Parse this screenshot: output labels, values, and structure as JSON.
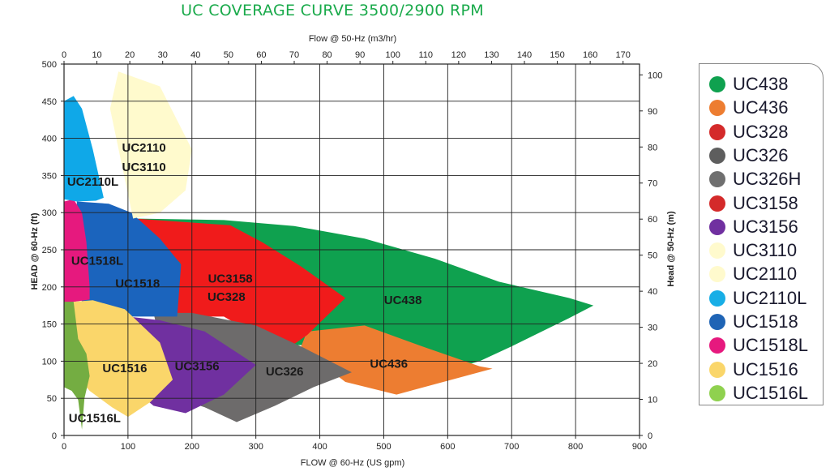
{
  "chart_data": {
    "type": "area",
    "title": "UC COVERAGE CURVE 3500/2900 RPM",
    "xlabel_bottom": "FLOW @ 60-Hz (US gpm)",
    "xlabel_top": "Flow @ 50-Hz (m3/hr)",
    "ylabel_left": "HEAD @ 60-Hz (ft)",
    "ylabel_right": "Head @ 50-Hz (m)",
    "xlim": [
      0,
      900
    ],
    "ylim": [
      0,
      500
    ],
    "xlim_top": [
      0,
      175
    ],
    "ylim_right": [
      0,
      103
    ],
    "x_ticks": [
      "0",
      "100",
      "200",
      "300",
      "400",
      "500",
      "600",
      "700",
      "800",
      "900"
    ],
    "y_ticks": [
      "0",
      "50",
      "100",
      "150",
      "200",
      "250",
      "300",
      "350",
      "400",
      "450",
      "500"
    ],
    "x_top_ticks": [
      "0",
      "10",
      "20",
      "30",
      "40",
      "50",
      "60",
      "70",
      "80",
      "90",
      "100",
      "110",
      "120",
      "130",
      "140",
      "150",
      "160",
      "170"
    ],
    "y_right_ticks": [
      "0",
      "10",
      "20",
      "30",
      "40",
      "50",
      "60",
      "70",
      "80",
      "90",
      "100"
    ],
    "grid": true,
    "legend_position": "right",
    "regions": [
      {
        "name": "UC438",
        "color": "#0fa14f",
        "label": "UC438",
        "points": [
          [
            108,
            292
          ],
          [
            250,
            290
          ],
          [
            360,
            282
          ],
          [
            470,
            265
          ],
          [
            580,
            238
          ],
          [
            680,
            207
          ],
          [
            790,
            185
          ],
          [
            828,
            175
          ],
          [
            790,
            158
          ],
          [
            700,
            120
          ],
          [
            650,
            100
          ],
          [
            600,
            88
          ],
          [
            500,
            92
          ],
          [
            470,
            100
          ],
          [
            440,
            120
          ],
          [
            350,
            122
          ],
          [
            270,
            150
          ],
          [
            170,
            210
          ],
          [
            140,
            260
          ]
        ]
      },
      {
        "name": "UC436",
        "color": "#ed7d31",
        "label": "UC436",
        "points": [
          [
            380,
            140
          ],
          [
            470,
            148
          ],
          [
            560,
            120
          ],
          [
            650,
            93
          ],
          [
            670,
            90
          ],
          [
            520,
            55
          ],
          [
            440,
            72
          ],
          [
            370,
            118
          ]
        ]
      },
      {
        "name": "UC3158",
        "color": "#f01b1b",
        "label": "UC3158\nUC328",
        "points": [
          [
            110,
            292
          ],
          [
            260,
            283
          ],
          [
            310,
            260
          ],
          [
            370,
            228
          ],
          [
            440,
            185
          ],
          [
            380,
            135
          ],
          [
            355,
            120
          ],
          [
            300,
            135
          ],
          [
            250,
            160
          ],
          [
            175,
            160
          ],
          [
            180,
            210
          ],
          [
            182,
            232
          ]
        ]
      },
      {
        "name": "UC326",
        "color": "#6d6b6b",
        "label": "UC326",
        "points": [
          [
            140,
            165
          ],
          [
            200,
            165
          ],
          [
            300,
            148
          ],
          [
            375,
            118
          ],
          [
            450,
            85
          ],
          [
            390,
            65
          ],
          [
            330,
            40
          ],
          [
            270,
            18
          ],
          [
            220,
            38
          ],
          [
            170,
            52
          ]
        ]
      },
      {
        "name": "UC3156",
        "color": "#7030a0",
        "label": "UC3156",
        "points": [
          [
            100,
            160
          ],
          [
            150,
            155
          ],
          [
            220,
            140
          ],
          [
            300,
            95
          ],
          [
            250,
            55
          ],
          [
            190,
            30
          ],
          [
            140,
            40
          ],
          [
            112,
            60
          ],
          [
            104,
            100
          ]
        ]
      },
      {
        "name": "UC1518",
        "color": "#1b64bd",
        "label": "UC1518",
        "points": [
          [
            20,
            315
          ],
          [
            70,
            312
          ],
          [
            105,
            300
          ],
          [
            150,
            265
          ],
          [
            183,
            230
          ],
          [
            177,
            160
          ],
          [
            140,
            160
          ],
          [
            100,
            160
          ],
          [
            60,
            165
          ],
          [
            30,
            175
          ],
          [
            20,
            200
          ]
        ]
      },
      {
        "name": "UC1518L",
        "color": "#e6197e",
        "label": "UC1518L",
        "points": [
          [
            0,
            315
          ],
          [
            15,
            318
          ],
          [
            28,
            300
          ],
          [
            35,
            260
          ],
          [
            40,
            200
          ],
          [
            40,
            183
          ],
          [
            0,
            178
          ]
        ]
      },
      {
        "name": "UC1516",
        "color": "#fad66a",
        "label": "UC1516",
        "points": [
          [
            15,
            180
          ],
          [
            45,
            182
          ],
          [
            95,
            170
          ],
          [
            150,
            125
          ],
          [
            170,
            75
          ],
          [
            135,
            45
          ],
          [
            100,
            25
          ],
          [
            75,
            38
          ],
          [
            40,
            60
          ],
          [
            20,
            80
          ]
        ]
      },
      {
        "name": "UC1516L",
        "color": "#74ad42",
        "label": "UC1516L",
        "points": [
          [
            0,
            180
          ],
          [
            15,
            180
          ],
          [
            22,
            130
          ],
          [
            35,
            110
          ],
          [
            40,
            80
          ],
          [
            32,
            50
          ],
          [
            28,
            8
          ],
          [
            22,
            48
          ],
          [
            12,
            60
          ],
          [
            0,
            65
          ]
        ]
      },
      {
        "name": "UC2110",
        "color": "#fffacd",
        "label": "UC2110\nUC3110",
        "points": [
          [
            85,
            490
          ],
          [
            150,
            470
          ],
          [
            200,
            385
          ],
          [
            190,
            330
          ],
          [
            150,
            300
          ],
          [
            108,
            292
          ],
          [
            72,
            440
          ]
        ]
      },
      {
        "name": "UC2110L",
        "color": "#0fa8e8",
        "label": "UC2110L",
        "points": [
          [
            0,
            450
          ],
          [
            15,
            457
          ],
          [
            28,
            440
          ],
          [
            45,
            385
          ],
          [
            62,
            320
          ],
          [
            50,
            316
          ],
          [
            20,
            315
          ],
          [
            0,
            318
          ]
        ]
      }
    ],
    "region_labels": [
      {
        "text": "UC2110",
        "x": 125,
        "y": 382
      },
      {
        "text": "UC3110",
        "x": 125,
        "y": 356
      },
      {
        "text": "UC2110L",
        "x": 45,
        "y": 336
      },
      {
        "text": "UC1518L",
        "x": 52,
        "y": 230
      },
      {
        "text": "UC1518",
        "x": 115,
        "y": 199
      },
      {
        "text": "UC3158",
        "x": 260,
        "y": 206
      },
      {
        "text": "UC328",
        "x": 254,
        "y": 181
      },
      {
        "text": "UC438",
        "x": 530,
        "y": 177
      },
      {
        "text": "UC436",
        "x": 508,
        "y": 91
      },
      {
        "text": "UC3156",
        "x": 208,
        "y": 88
      },
      {
        "text": "UC326",
        "x": 345,
        "y": 81
      },
      {
        "text": "UC1516",
        "x": 95,
        "y": 85
      },
      {
        "text": "UC1516L",
        "x": 48,
        "y": 18
      }
    ]
  },
  "legend": [
    {
      "label": "UC438",
      "color": "#0fa14f"
    },
    {
      "label": "UC436",
      "color": "#ed7d31"
    },
    {
      "label": "UC328",
      "color": "#d42a2a"
    },
    {
      "label": "UC326",
      "color": "#5e5e5e"
    },
    {
      "label": "UC326H",
      "color": "#6f6f6f"
    },
    {
      "label": "UC3158",
      "color": "#d42a2a"
    },
    {
      "label": "UC3156",
      "color": "#7030a0"
    },
    {
      "label": "UC3110",
      "color": "#fffacd"
    },
    {
      "label": "UC2110",
      "color": "#fffacd"
    },
    {
      "label": "UC2110L",
      "color": "#18aee6"
    },
    {
      "label": "UC1518",
      "color": "#1f64b5"
    },
    {
      "label": "UC1518L",
      "color": "#e6197e"
    },
    {
      "label": "UC1516",
      "color": "#fad66a"
    },
    {
      "label": "UC1516L",
      "color": "#8fd14f"
    }
  ]
}
